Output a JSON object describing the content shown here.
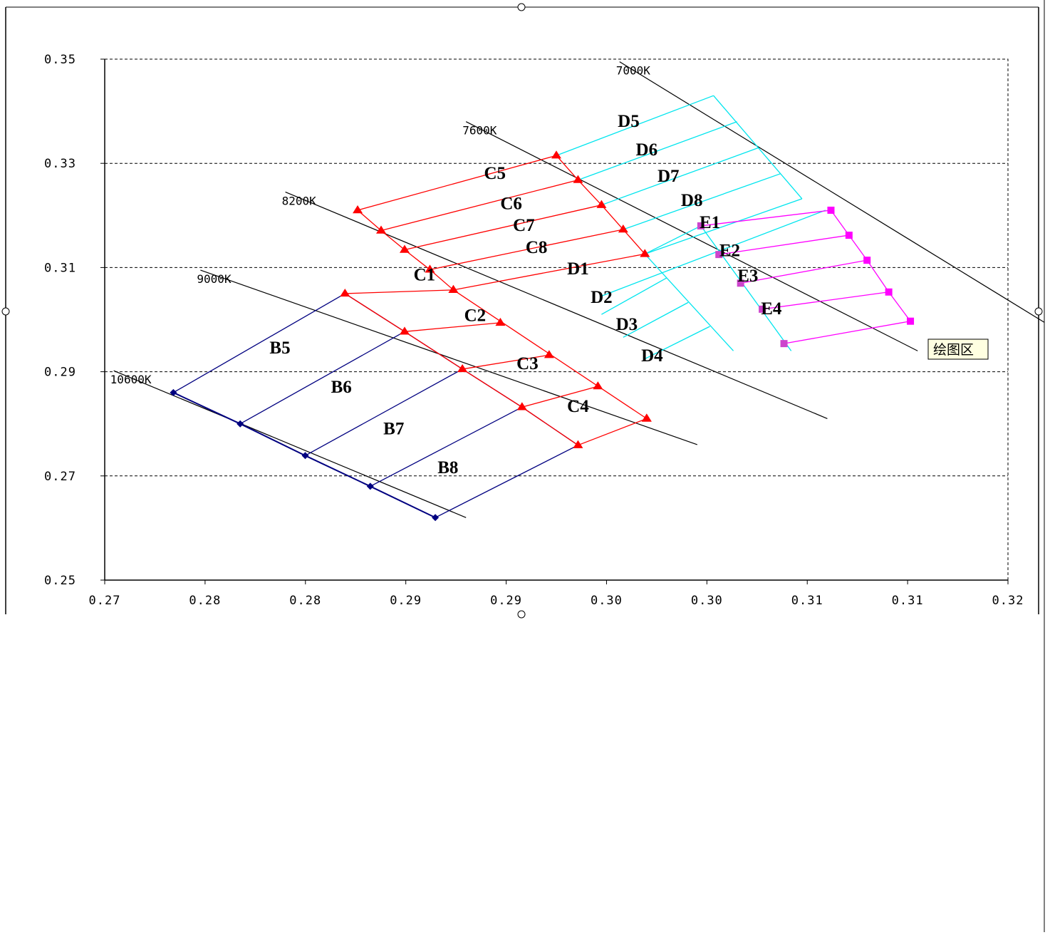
{
  "chart_data": {
    "type": "line",
    "title": "",
    "xlabel": "",
    "ylabel": "",
    "xlim": [
      0.27,
      0.32
    ],
    "ylim": [
      0.25,
      0.35
    ],
    "x_tick_labels": [
      "0.27",
      "0.28",
      "0.28",
      "0.29",
      "0.29",
      "0.30",
      "0.30",
      "0.31",
      "0.31",
      "0.32"
    ],
    "y_tick_labels": [
      "0.35",
      "0.33",
      "0.31",
      "0.29",
      "0.27",
      "0.25"
    ],
    "y_tick_values": [
      0.35,
      0.33,
      0.31,
      0.29,
      0.27,
      0.25
    ],
    "grid": "horizontal dashed",
    "cct_lines": [
      {
        "label": "10600K",
        "start": [
          0.2705,
          0.2902
        ],
        "end": [
          0.29,
          0.262
        ]
      },
      {
        "label": "9000K",
        "start": [
          0.2753,
          0.3095
        ],
        "end": [
          0.3028,
          0.276
        ]
      },
      {
        "label": "8200K",
        "start": [
          0.28,
          0.3245
        ],
        "end": [
          0.31,
          0.281
        ]
      },
      {
        "label": "7600K",
        "start": [
          0.29,
          0.338
        ],
        "end": [
          0.315,
          0.294
        ]
      },
      {
        "label": "7000K",
        "start": [
          0.2985,
          0.3495
        ],
        "end": [
          0.322,
          0.2995
        ]
      }
    ],
    "bin_corners": {
      "b_line_10600": [
        [
          0.2738,
          0.286
        ],
        [
          0.2775,
          0.28
        ],
        [
          0.2811,
          0.2739
        ],
        [
          0.2847,
          0.268
        ],
        [
          0.2883,
          0.262
        ]
      ],
      "b_line_9000": [
        [
          0.2833,
          0.305
        ],
        [
          0.2866,
          0.2977
        ],
        [
          0.2898,
          0.2905
        ],
        [
          0.2931,
          0.2832
        ],
        [
          0.2962,
          0.2759
        ]
      ],
      "c_line_8200": [
        [
          0.284,
          0.321
        ],
        [
          0.2853,
          0.3171
        ],
        [
          0.2866,
          0.3134
        ],
        [
          0.288,
          0.3096
        ],
        [
          0.2893,
          0.3057
        ],
        [
          0.3,
          0.281
        ]
      ],
      "c_line_7600": [
        [
          0.295,
          0.3315
        ],
        [
          0.2962,
          0.3268
        ],
        [
          0.2975,
          0.322
        ],
        [
          0.2987,
          0.3173
        ],
        [
          0.2999,
          0.3126
        ],
        [
          0.3011,
          0.308
        ],
        [
          0.3023,
          0.3033
        ],
        [
          0.3035,
          0.2987
        ],
        [
          0.3048,
          0.294
        ]
      ],
      "e_line_7000": [
        [
          0.3102,
          0.321
        ],
        [
          0.3112,
          0.3162
        ],
        [
          0.3122,
          0.3114
        ],
        [
          0.3134,
          0.3053
        ],
        [
          0.3146,
          0.2997
        ]
      ]
    },
    "bins": [
      {
        "name": "B5",
        "x": 0.2797,
        "y": 0.2935
      },
      {
        "name": "B6",
        "x": 0.2831,
        "y": 0.286
      },
      {
        "name": "B7",
        "x": 0.286,
        "y": 0.278
      },
      {
        "name": "B8",
        "x": 0.289,
        "y": 0.2705
      },
      {
        "name": "C1",
        "x": 0.2877,
        "y": 0.3075
      },
      {
        "name": "C2",
        "x": 0.2905,
        "y": 0.2997
      },
      {
        "name": "C3",
        "x": 0.2934,
        "y": 0.2905
      },
      {
        "name": "C4",
        "x": 0.2962,
        "y": 0.2823
      },
      {
        "name": "C5",
        "x": 0.2916,
        "y": 0.327
      },
      {
        "name": "C6",
        "x": 0.2925,
        "y": 0.3212
      },
      {
        "name": "C7",
        "x": 0.2932,
        "y": 0.317
      },
      {
        "name": "C8",
        "x": 0.2939,
        "y": 0.3128
      },
      {
        "name": "D1",
        "x": 0.2962,
        "y": 0.3087
      },
      {
        "name": "D2",
        "x": 0.2975,
        "y": 0.3032
      },
      {
        "name": "D3",
        "x": 0.2989,
        "y": 0.298
      },
      {
        "name": "D4",
        "x": 0.3003,
        "y": 0.292
      },
      {
        "name": "D5",
        "x": 0.299,
        "y": 0.337
      },
      {
        "name": "D6",
        "x": 0.3,
        "y": 0.3315
      },
      {
        "name": "D7",
        "x": 0.3012,
        "y": 0.3265
      },
      {
        "name": "D8",
        "x": 0.3025,
        "y": 0.3218
      },
      {
        "name": "E1",
        "x": 0.3035,
        "y": 0.3176
      },
      {
        "name": "E2",
        "x": 0.3046,
        "y": 0.3122
      },
      {
        "name": "E3",
        "x": 0.3056,
        "y": 0.3073
      },
      {
        "name": "E4",
        "x": 0.3069,
        "y": 0.301
      }
    ],
    "colors": {
      "B": "#000080",
      "C": "#ff0000",
      "D": "#00e5ee",
      "E": "#ff00ff",
      "cct": "#000000"
    }
  },
  "tooltip": {
    "label": "绘图区"
  }
}
